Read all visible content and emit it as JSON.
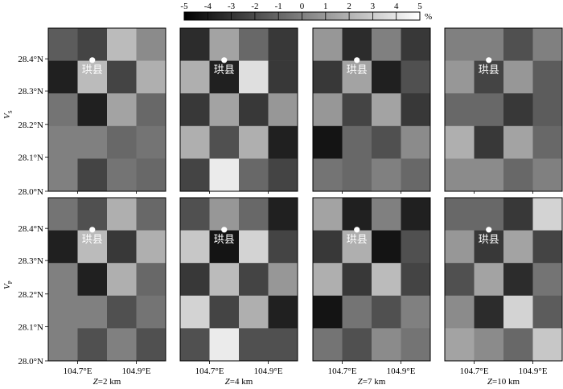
{
  "colorbar": {
    "ticks": [
      "-5",
      "-4",
      "-3",
      "-2",
      "-1",
      "0",
      "1",
      "2",
      "3",
      "4",
      "5"
    ],
    "unit": "%",
    "range": [
      -5,
      5
    ]
  },
  "rows": [
    {
      "label_main": "V",
      "label_sub": "S"
    },
    {
      "label_main": "V",
      "label_sub": "P"
    }
  ],
  "depths": [
    "Z=2 km",
    "Z=4 km",
    "Z=7 km",
    "Z=10 km"
  ],
  "x_ticks": [
    "104.7°E",
    "104.9°E"
  ],
  "y_ticks": [
    "28.4°N",
    "28.3°N",
    "28.2°N",
    "28.1°N",
    "28.0°N"
  ],
  "town_label": "珙县",
  "chart_data": {
    "type": "heatmap",
    "xlabel": "",
    "ylabel": "",
    "x_ticks": [
      "104.7°E",
      "104.9°E"
    ],
    "y_ticks": [
      "28.4°N",
      "28.3°N",
      "28.2°N",
      "28.1°N",
      "28.0°N"
    ],
    "value_range": [
      -5,
      5
    ],
    "unit": "%",
    "grid_columns": 4,
    "grid_rows": 5,
    "town": "珙县",
    "panels": [
      {
        "row": "VS",
        "depth": "Z=2 km",
        "values": [
          [
            -1.5,
            -2.5,
            2.5,
            0.5
          ],
          [
            -4,
            2.5,
            -2.5,
            2
          ],
          [
            -0.5,
            -4,
            1.5,
            -1
          ],
          [
            0,
            0,
            -1,
            -0.5
          ],
          [
            0,
            -2.5,
            -0.5,
            -1
          ]
        ]
      },
      {
        "row": "VS",
        "depth": "Z=4 km",
        "values": [
          [
            -3.5,
            1.5,
            -1,
            -3
          ],
          [
            2,
            -4,
            4,
            -3
          ],
          [
            -3,
            1.5,
            -3,
            1
          ],
          [
            2,
            -2,
            2,
            -4
          ],
          [
            -2.5,
            4.5,
            -1,
            -2.5
          ]
        ]
      },
      {
        "row": "VS",
        "depth": "Z=7 km",
        "values": [
          [
            1,
            -3.5,
            0,
            -3
          ],
          [
            -3,
            1.5,
            -4,
            -2
          ],
          [
            1,
            -2.5,
            1.5,
            -3
          ],
          [
            -4.5,
            -1,
            -2,
            0.5
          ],
          [
            -0.5,
            -1,
            0,
            -1
          ]
        ]
      },
      {
        "row": "VS",
        "depth": "Z=10 km",
        "values": [
          [
            0,
            0,
            -2,
            0
          ],
          [
            1,
            -2.5,
            1,
            -1.5
          ],
          [
            -1,
            -1,
            -3,
            -1.5
          ],
          [
            2,
            -3,
            1.5,
            -1
          ],
          [
            0.5,
            0.5,
            -1,
            0
          ]
        ]
      },
      {
        "row": "VP",
        "depth": "Z=2 km",
        "values": [
          [
            -0.5,
            -2,
            2,
            -1
          ],
          [
            -4,
            2.5,
            -3,
            2
          ],
          [
            0,
            -4,
            2,
            -1
          ],
          [
            0,
            0,
            -2,
            -0.5
          ],
          [
            0,
            -2,
            0,
            -2
          ]
        ]
      },
      {
        "row": "VP",
        "depth": "Z=4 km",
        "values": [
          [
            -2,
            1,
            -1,
            -4
          ],
          [
            3,
            -4.5,
            3.5,
            -2.5
          ],
          [
            -3,
            2.5,
            -2.5,
            1
          ],
          [
            3.5,
            -2.5,
            2,
            -4
          ],
          [
            -2,
            4.5,
            -2,
            -2
          ]
        ]
      },
      {
        "row": "VP",
        "depth": "Z=7 km",
        "values": [
          [
            1.5,
            -4,
            0,
            -4
          ],
          [
            -3,
            2,
            -4.5,
            -2
          ],
          [
            2,
            -3,
            2.5,
            -2.5
          ],
          [
            -4.5,
            -0.5,
            -2,
            0
          ],
          [
            -0.5,
            -2,
            0.5,
            -0.5
          ]
        ]
      },
      {
        "row": "VP",
        "depth": "Z=10 km",
        "values": [
          [
            -1,
            -1,
            -3,
            3.5
          ],
          [
            1,
            -3,
            1.5,
            -2.5
          ],
          [
            -2,
            1.5,
            -3.5,
            -0.5
          ],
          [
            0.5,
            -3.5,
            3.5,
            -1.5
          ],
          [
            1.5,
            0.5,
            -1,
            3
          ]
        ]
      }
    ]
  }
}
